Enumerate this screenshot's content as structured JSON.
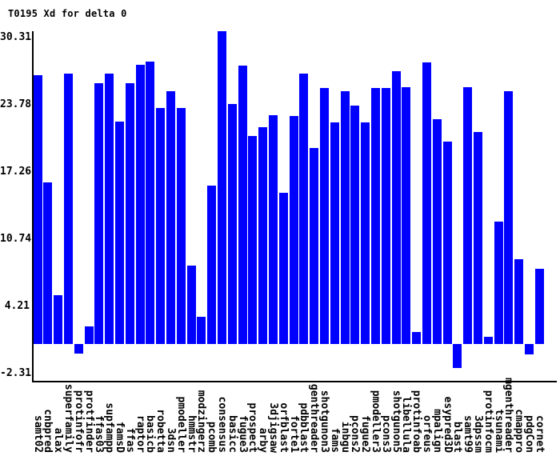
{
  "chart_data": {
    "type": "bar",
    "title": "T0195 Xd for delta 0",
    "xlabel": "",
    "ylabel": "",
    "bar_color": "#0000ff",
    "axis_color": "#000000",
    "background_color": "#ffffff",
    "grid": false,
    "legend": "none",
    "y_ticks": [
      30.31,
      23.78,
      17.26,
      10.74,
      4.21,
      -2.31
    ],
    "ylim": [
      -3.6,
      30.9
    ],
    "categories": [
      "samt02",
      "cnbpred",
      "alax",
      "superfamily",
      "protinfofr",
      "protfinder",
      "ffas03",
      "supfampp",
      "famsD",
      "ffas",
      "raptor",
      "basicb",
      "robetta",
      "3dsn",
      "pmodeller",
      "hmmstr",
      "modzingerz",
      "pcomb",
      "consensus",
      "basicc",
      "fugue3",
      "prospect",
      "arby",
      "3djigsaw",
      "orfblast",
      "forte1",
      "pdbblast",
      "genthreader",
      "shotgunon3",
      "fams",
      "inbgu",
      "pcons2",
      "fugue2",
      "pmodeller3",
      "pcons3",
      "shotgunon5",
      "libellula",
      "protinfoab",
      "orfeus",
      "mpalign",
      "esypred3D",
      "blast",
      "samt99",
      "3dpssm",
      "protinfocm",
      "tsunami",
      "mgenthreader",
      "cmappro",
      "pdgCon",
      "cornet"
    ],
    "values": [
      26.1,
      15.7,
      4.7,
      26.2,
      -0.9,
      1.7,
      25.3,
      26.2,
      21.6,
      25.3,
      27.1,
      27.4,
      22.9,
      24.5,
      22.9,
      7.6,
      2.6,
      15.4,
      30.31,
      23.3,
      27.0,
      20.2,
      21.0,
      22.2,
      14.7,
      22.1,
      26.2,
      19.0,
      24.8,
      21.5,
      24.5,
      23.1,
      21.5,
      24.8,
      24.8,
      26.5,
      24.9,
      1.2,
      27.3,
      21.8,
      19.6,
      -2.31,
      24.9,
      20.6,
      0.7,
      11.9,
      24.5,
      8.2,
      -1.0,
      7.3
    ]
  }
}
